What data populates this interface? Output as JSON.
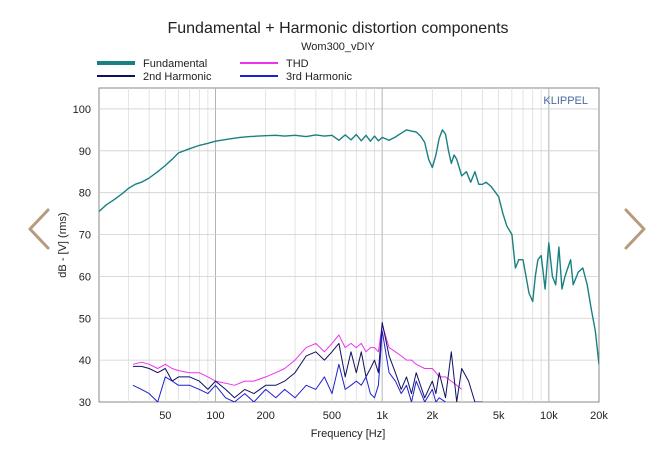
{
  "nav": {
    "prev_icon": "chevron-left-icon",
    "next_icon": "chevron-right-icon",
    "arrow_color": "#b89a7c"
  },
  "chart_data": {
    "type": "line",
    "title": "Fundamental + Harmonic distortion components",
    "subtitle": "Wom300_vDIY",
    "watermark": "KLIPPEL",
    "xlabel": "Frequency [Hz]",
    "ylabel": "dB - [V] (rms)",
    "xscale": "log",
    "xlim": [
      20,
      20000
    ],
    "ylim": [
      30,
      105
    ],
    "grid": true,
    "legend_position": "top-left",
    "xticks": [
      {
        "value": 50,
        "label": "50"
      },
      {
        "value": 100,
        "label": "100"
      },
      {
        "value": 200,
        "label": "200"
      },
      {
        "value": 500,
        "label": "500"
      },
      {
        "value": 1000,
        "label": "1k"
      },
      {
        "value": 2000,
        "label": "2k"
      },
      {
        "value": 5000,
        "label": "5k"
      },
      {
        "value": 10000,
        "label": "10k"
      },
      {
        "value": 20000,
        "label": "20k"
      }
    ],
    "yticks": [
      30,
      40,
      50,
      60,
      70,
      80,
      90,
      100
    ],
    "series": [
      {
        "name": "Fundamental",
        "color": "#1a8080",
        "x": [
          20,
          22,
          25,
          28,
          30,
          33,
          36,
          40,
          45,
          50,
          55,
          60,
          70,
          80,
          90,
          100,
          120,
          140,
          160,
          180,
          200,
          230,
          260,
          300,
          350,
          400,
          450,
          500,
          550,
          600,
          650,
          700,
          750,
          800,
          850,
          900,
          950,
          1000,
          1100,
          1200,
          1300,
          1400,
          1500,
          1600,
          1700,
          1800,
          1900,
          2000,
          2100,
          2200,
          2300,
          2400,
          2500,
          2600,
          2700,
          2800,
          2900,
          3000,
          3200,
          3400,
          3600,
          3800,
          4000,
          4200,
          4500,
          4800,
          5000,
          5300,
          5600,
          6000,
          6300,
          6600,
          7000,
          7300,
          7600,
          8000,
          8300,
          8600,
          9000,
          9500,
          10000,
          10500,
          11000,
          11500,
          12000,
          12500,
          13000,
          13500,
          14000,
          15000,
          16000,
          17000,
          18000,
          19000,
          20000
        ],
        "y": [
          75.5,
          77,
          78.5,
          80,
          81,
          82,
          82.5,
          83.5,
          85,
          86.5,
          88,
          89.5,
          90.5,
          91.3,
          91.8,
          92.3,
          92.8,
          93.2,
          93.4,
          93.5,
          93.6,
          93.7,
          93.5,
          93.7,
          93.4,
          93.8,
          93.5,
          93.7,
          92.5,
          93.8,
          92.6,
          93.9,
          92.4,
          93.7,
          92.3,
          93.5,
          92.4,
          93.2,
          92.5,
          93.3,
          94.2,
          95,
          94.7,
          94.5,
          93.5,
          92,
          88,
          86,
          89,
          93,
          95,
          94,
          90,
          87,
          89,
          88,
          86,
          84,
          85,
          82.5,
          85,
          82,
          82,
          82.5,
          81.5,
          80,
          79,
          75,
          72,
          70,
          62,
          64,
          64,
          60,
          56,
          54,
          60,
          64,
          65,
          57,
          68,
          60,
          58,
          67,
          57,
          60,
          62,
          64,
          58,
          61,
          62,
          58,
          52,
          47,
          39
        ]
      },
      {
        "name": "THD",
        "color": "#ee33ee",
        "x": [
          32,
          36,
          40,
          45,
          50,
          55,
          60,
          70,
          80,
          90,
          100,
          115,
          130,
          150,
          170,
          200,
          230,
          260,
          300,
          350,
          400,
          450,
          500,
          550,
          600,
          650,
          700,
          750,
          800,
          850,
          900,
          950,
          1000,
          1100,
          1200,
          1300,
          1400,
          1500,
          1600,
          1800,
          2000,
          2100,
          2200,
          2400,
          2600,
          2800,
          3000
        ],
        "y": [
          39,
          39.5,
          39,
          38,
          39,
          38,
          37.5,
          37,
          37,
          36,
          35,
          34.5,
          34,
          35,
          35,
          36,
          37,
          38,
          40,
          43,
          44,
          42,
          44,
          46,
          43,
          44,
          43,
          44,
          42,
          43,
          43,
          42,
          48.5,
          43,
          42,
          41,
          40,
          40,
          39,
          38,
          38,
          37,
          36,
          36,
          35,
          34,
          33
        ]
      },
      {
        "name": "2nd Harmonic",
        "color": "#101060",
        "x": [
          32,
          36,
          40,
          45,
          50,
          55,
          60,
          70,
          80,
          90,
          100,
          115,
          130,
          150,
          170,
          200,
          230,
          260,
          300,
          350,
          400,
          450,
          500,
          550,
          600,
          650,
          700,
          750,
          800,
          850,
          900,
          950,
          1000,
          1100,
          1200,
          1300,
          1400,
          1500,
          1600,
          1800,
          2000,
          2100,
          2200,
          2400,
          2600,
          2800,
          3000,
          3300,
          3600,
          4000
        ],
        "y": [
          38.5,
          38.5,
          38,
          37,
          38,
          35,
          36,
          36,
          35,
          33,
          35,
          33,
          31,
          33,
          32,
          34,
          34,
          35,
          37,
          41,
          42,
          40,
          42,
          44,
          36,
          42,
          37,
          42,
          36,
          38,
          40,
          37,
          49,
          41,
          37,
          33,
          36,
          32,
          37,
          31,
          35,
          32,
          37,
          31,
          42,
          30,
          38,
          35,
          30,
          30
        ]
      },
      {
        "name": "3rd Harmonic",
        "color": "#2020d0",
        "x": [
          32,
          36,
          40,
          45,
          50,
          55,
          60,
          70,
          80,
          90,
          100,
          115,
          130,
          150,
          170,
          200,
          230,
          260,
          300,
          350,
          400,
          450,
          500,
          550,
          600,
          650,
          700,
          750,
          800,
          850,
          900,
          950,
          1000,
          1100,
          1200,
          1300,
          1400,
          1500,
          1600,
          1800,
          2000,
          2100,
          2200,
          2400
        ],
        "y": [
          34,
          33,
          32,
          30,
          36,
          35,
          34,
          34,
          33,
          32,
          34,
          31,
          30,
          32,
          30,
          33,
          31,
          33,
          31,
          34,
          33,
          36,
          32,
          39,
          33,
          34,
          35,
          34,
          36,
          32,
          31,
          34,
          47,
          37,
          35,
          32,
          34,
          30,
          35,
          30,
          33,
          30,
          31,
          30
        ]
      }
    ]
  }
}
